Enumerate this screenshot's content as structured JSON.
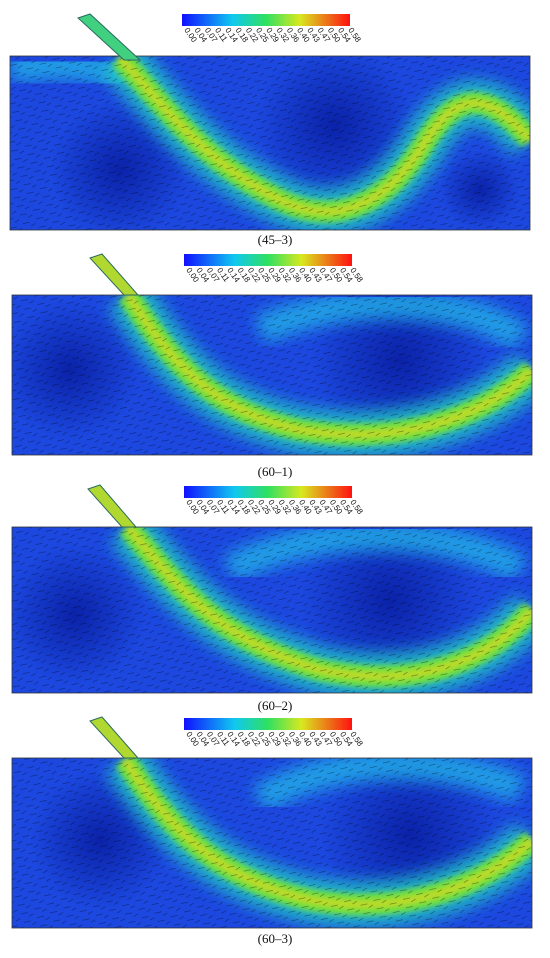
{
  "panels": [
    {
      "caption": "(45–3)",
      "colorbar_labels": [
        "0.00",
        "0.04",
        "0.07",
        "0.11",
        "0.14",
        "0.18",
        "0.22",
        "0.25",
        "0.29",
        "0.32",
        "0.36",
        "0.40",
        "0.43",
        "0.47",
        "0.50",
        "0.54",
        "0.58"
      ]
    },
    {
      "caption": "(60–1)",
      "colorbar_labels": [
        "0.00",
        "0.04",
        "0.07",
        "0.11",
        "0.14",
        "0.18",
        "0.22",
        "0.25",
        "0.29",
        "0.32",
        "0.36",
        "0.40",
        "0.43",
        "0.47",
        "0.50",
        "0.54",
        "0.58"
      ]
    },
    {
      "caption": "(60–2)",
      "colorbar_labels": [
        "0.00",
        "0.04",
        "0.07",
        "0.11",
        "0.14",
        "0.18",
        "0.22",
        "0.25",
        "0.29",
        "0.32",
        "0.36",
        "0.40",
        "0.43",
        "0.47",
        "0.50",
        "0.54",
        "0.58"
      ]
    },
    {
      "caption": "(60–3)",
      "colorbar_labels": [
        "0.00",
        "0.04",
        "0.07",
        "0.11",
        "0.14",
        "0.18",
        "0.22",
        "0.25",
        "0.29",
        "0.32",
        "0.36",
        "0.40",
        "0.43",
        "0.47",
        "0.50",
        "0.54",
        "0.58"
      ]
    }
  ]
}
